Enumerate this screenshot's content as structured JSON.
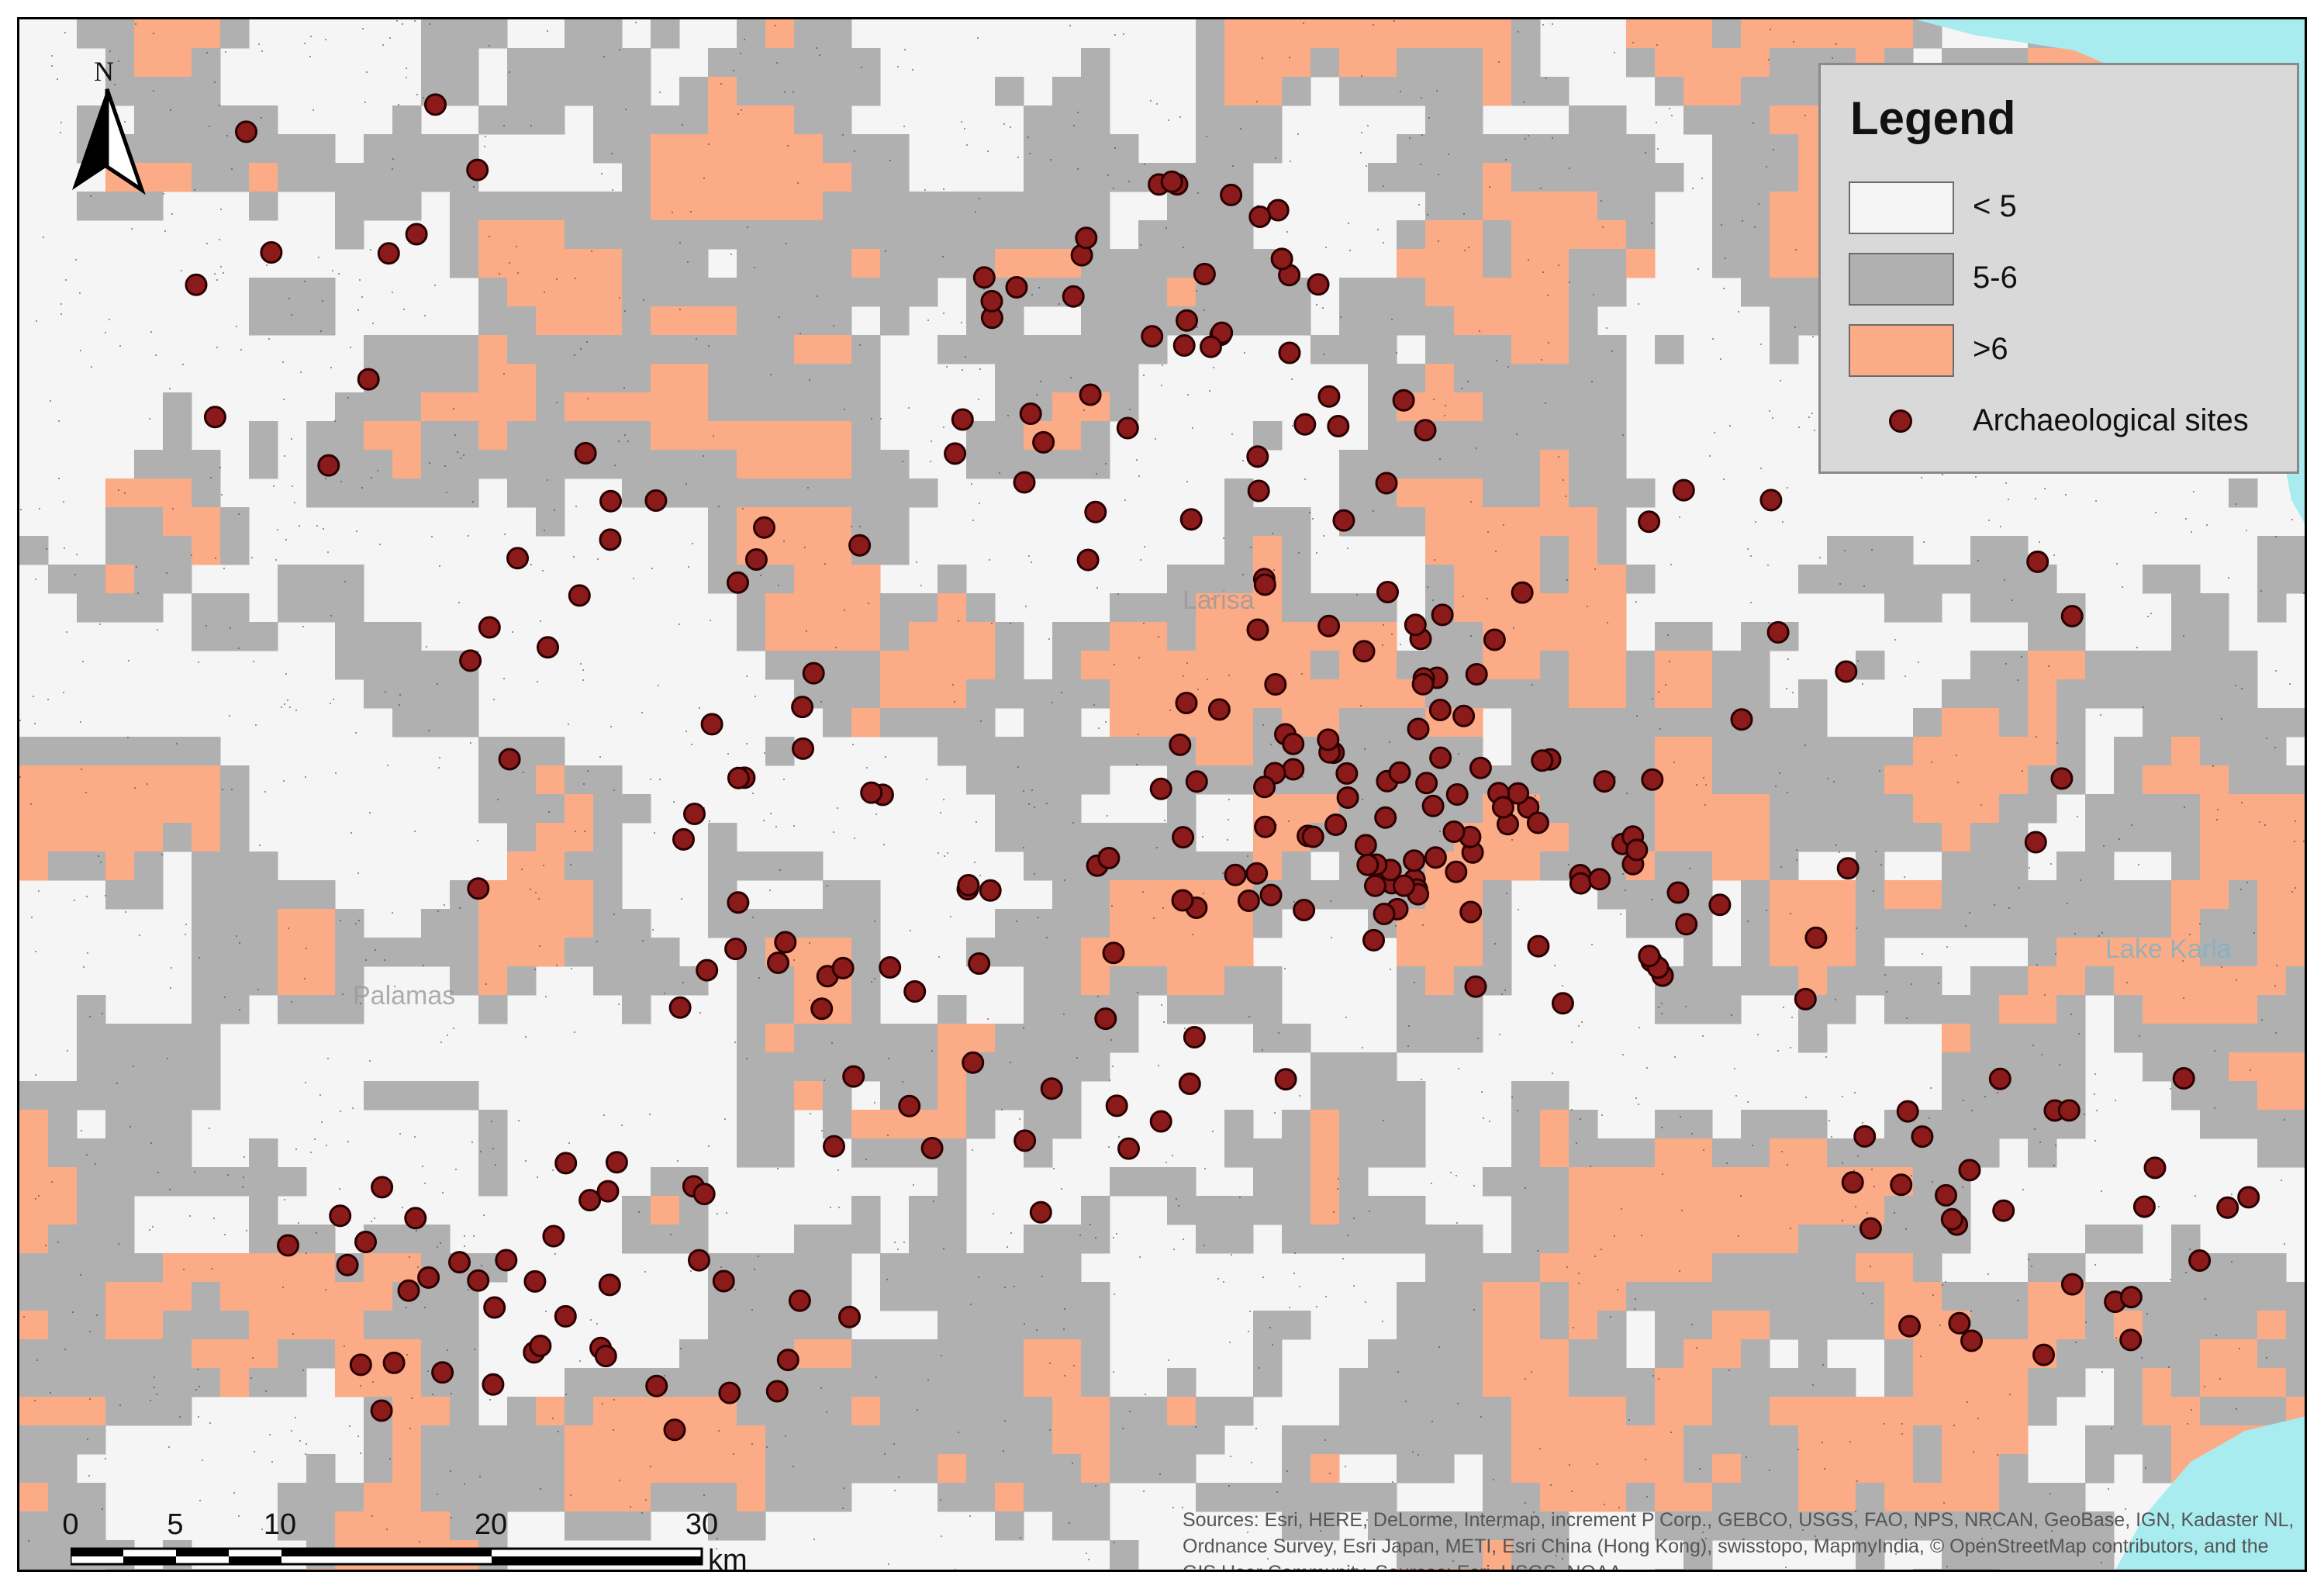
{
  "north_label": "N",
  "legend": {
    "title": "Legend",
    "items": [
      {
        "label": "< 5",
        "color": "#f5f5f5"
      },
      {
        "label": "5-6",
        "color": "#b0b0b0"
      },
      {
        "label": ">6",
        "color": "#fbab86"
      },
      {
        "label": "Archaeological sites",
        "color": "#8b1a1a"
      }
    ]
  },
  "scale": {
    "ticks": [
      "0",
      "5",
      "10",
      "20",
      "30"
    ],
    "unit": "km"
  },
  "attribution": "Sources: Esri, HERE, DeLorme, Intermap, increment P Corp., GEBCO, USGS, FAO, NPS, NRCAN, GeoBase, IGN, Kadaster NL, Ordnance Survey, Esri Japan, METI, Esri China (Hong Kong), swisstopo, MapmyIndia, © OpenStreetMap contributors, and the GIS User Community, Sources: Esri, USGS, NOAA",
  "basemap_labels": [
    "Palamas",
    "Lake Karla",
    "Larisa"
  ],
  "colors": {
    "class_low": "#f5f5f5",
    "class_mid": "#b0b0b0",
    "class_high": "#fbab86",
    "sea": "#a8ecef",
    "site_fill": "#8b1a1a",
    "site_stroke": "#2a0000"
  }
}
